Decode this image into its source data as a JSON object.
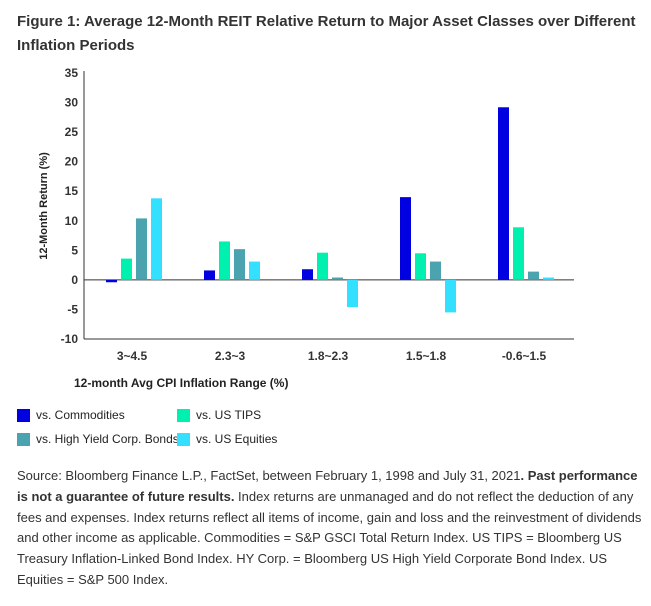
{
  "chart_data": {
    "type": "bar",
    "title": "Figure 1: Average 12-Month REIT Relative Return to Major Asset Classes over Different Inflation Periods",
    "xlabel": "12-month Avg CPI Inflation Range (%)",
    "ylabel": "12-Month Return (%)",
    "ylim": [
      -10,
      35
    ],
    "yticks": [
      "35",
      "30",
      "25",
      "20",
      "15",
      "10",
      "5",
      "0",
      "-5",
      "-10"
    ],
    "categories": [
      "3~4.5",
      "2.3~3",
      "1.8~2.3",
      "1.5~1.8",
      "-0.6~1.5"
    ],
    "grid": false,
    "legend_placement": "bottom",
    "series": [
      {
        "name": "vs. Commodities",
        "color": "#0000e0",
        "values": [
          -0.4,
          1.6,
          1.8,
          14.0,
          29.2
        ]
      },
      {
        "name": "vs. US TIPS",
        "color": "#00f0b0",
        "values": [
          3.6,
          6.5,
          4.6,
          4.5,
          8.9
        ]
      },
      {
        "name": "vs. High Yield Corp. Bonds",
        "color": "#4aa3ae",
        "values": [
          10.4,
          5.2,
          0.4,
          3.1,
          1.4
        ]
      },
      {
        "name": "vs. US Equities",
        "color": "#33e0ff",
        "values": [
          13.8,
          3.1,
          -4.6,
          -5.5,
          0.4
        ]
      }
    ]
  },
  "source": {
    "text1": "Source: Bloomberg Finance L.P., FactSet, between February 1, 1998 and July 31, 2021",
    "bold": ". Past performance is not a guarantee of future results.",
    "text2": " Index returns are unmanaged and do not reflect the deduction of any fees and expenses. Index returns reflect all items of income, gain and loss and the reinvestment of dividends and other income as applicable. Commodities = S&P GSCI Total Return Index. US TIPS = Bloomberg US Treasury Inflation-Linked Bond Index. HY Corp. = Bloomberg US High Yield Corporate Bond Index. US Equities = S&P 500 Index."
  }
}
